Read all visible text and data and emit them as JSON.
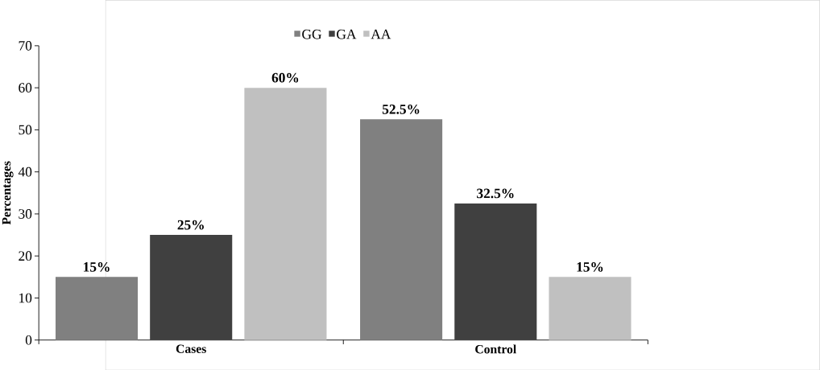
{
  "chart_data": {
    "type": "bar",
    "ylabel": "**Percentages**",
    "categories": [
      "**Cases**",
      "**Control**"
    ],
    "series": [
      {
        "name": "GG",
        "color": "#808080",
        "values": [
          15,
          52.5
        ],
        "value_labels": [
          "15%",
          "52.5%"
        ]
      },
      {
        "name": "GA",
        "color": "#404040",
        "values": [
          25,
          32.5
        ],
        "value_labels": [
          "25%",
          "32.5%"
        ]
      },
      {
        "name": "AA",
        "color": "#c0c0c0",
        "values": [
          60,
          15
        ],
        "value_labels": [
          "60%",
          "15%"
        ]
      }
    ],
    "ylim": [
      0,
      70
    ],
    "yticks": [
      0,
      10,
      20,
      30,
      40,
      50,
      60,
      70
    ],
    "grid": false,
    "legend": "top"
  }
}
